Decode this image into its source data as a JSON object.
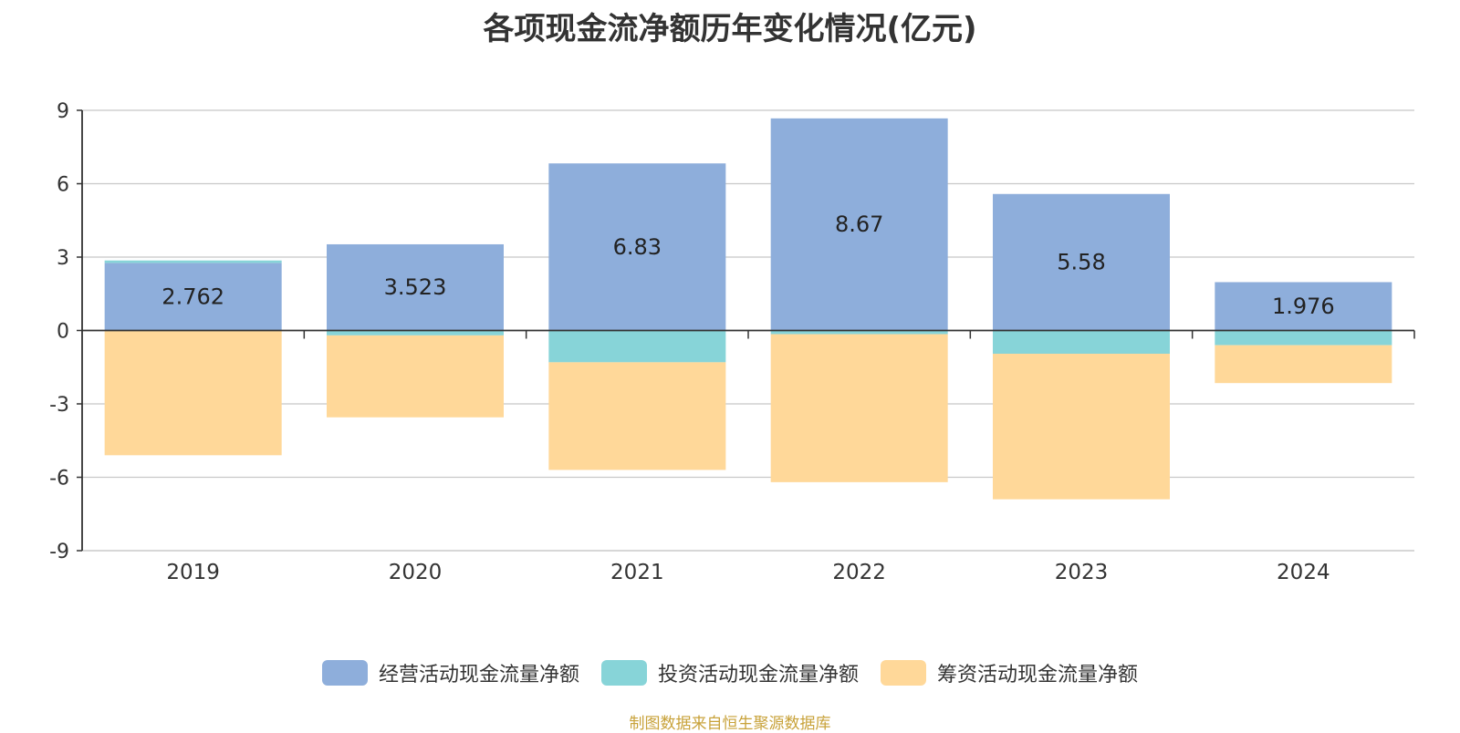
{
  "chart_data": {
    "type": "bar",
    "stacked": true,
    "title": "各项现金流净额历年变化情况(亿元)",
    "categories": [
      "2019",
      "2020",
      "2021",
      "2022",
      "2023",
      "2024"
    ],
    "ylim": [
      -9,
      9
    ],
    "yticks": [
      9,
      6,
      3,
      0,
      -3,
      -6,
      -9
    ],
    "grid": true,
    "legend_position": "bottom",
    "series": [
      {
        "name": "经营活动现金流量净额",
        "color": "#8eaedb",
        "values": [
          2.762,
          3.523,
          6.83,
          8.67,
          5.58,
          1.976
        ],
        "labels": [
          "2.762",
          "3.523",
          "6.83",
          "8.67",
          "5.58",
          "1.976"
        ]
      },
      {
        "name": "投资活动现金流量净额",
        "color": "#87d4d8",
        "values": [
          0.1,
          -0.2,
          -1.3,
          -0.15,
          -0.95,
          -0.6
        ]
      },
      {
        "name": "筹资活动现金流量净额",
        "color": "#ffd899",
        "values": [
          -5.1,
          -3.35,
          -4.4,
          -6.05,
          -5.95,
          -1.55
        ]
      }
    ]
  },
  "source": "制图数据来自恒生聚源数据库"
}
